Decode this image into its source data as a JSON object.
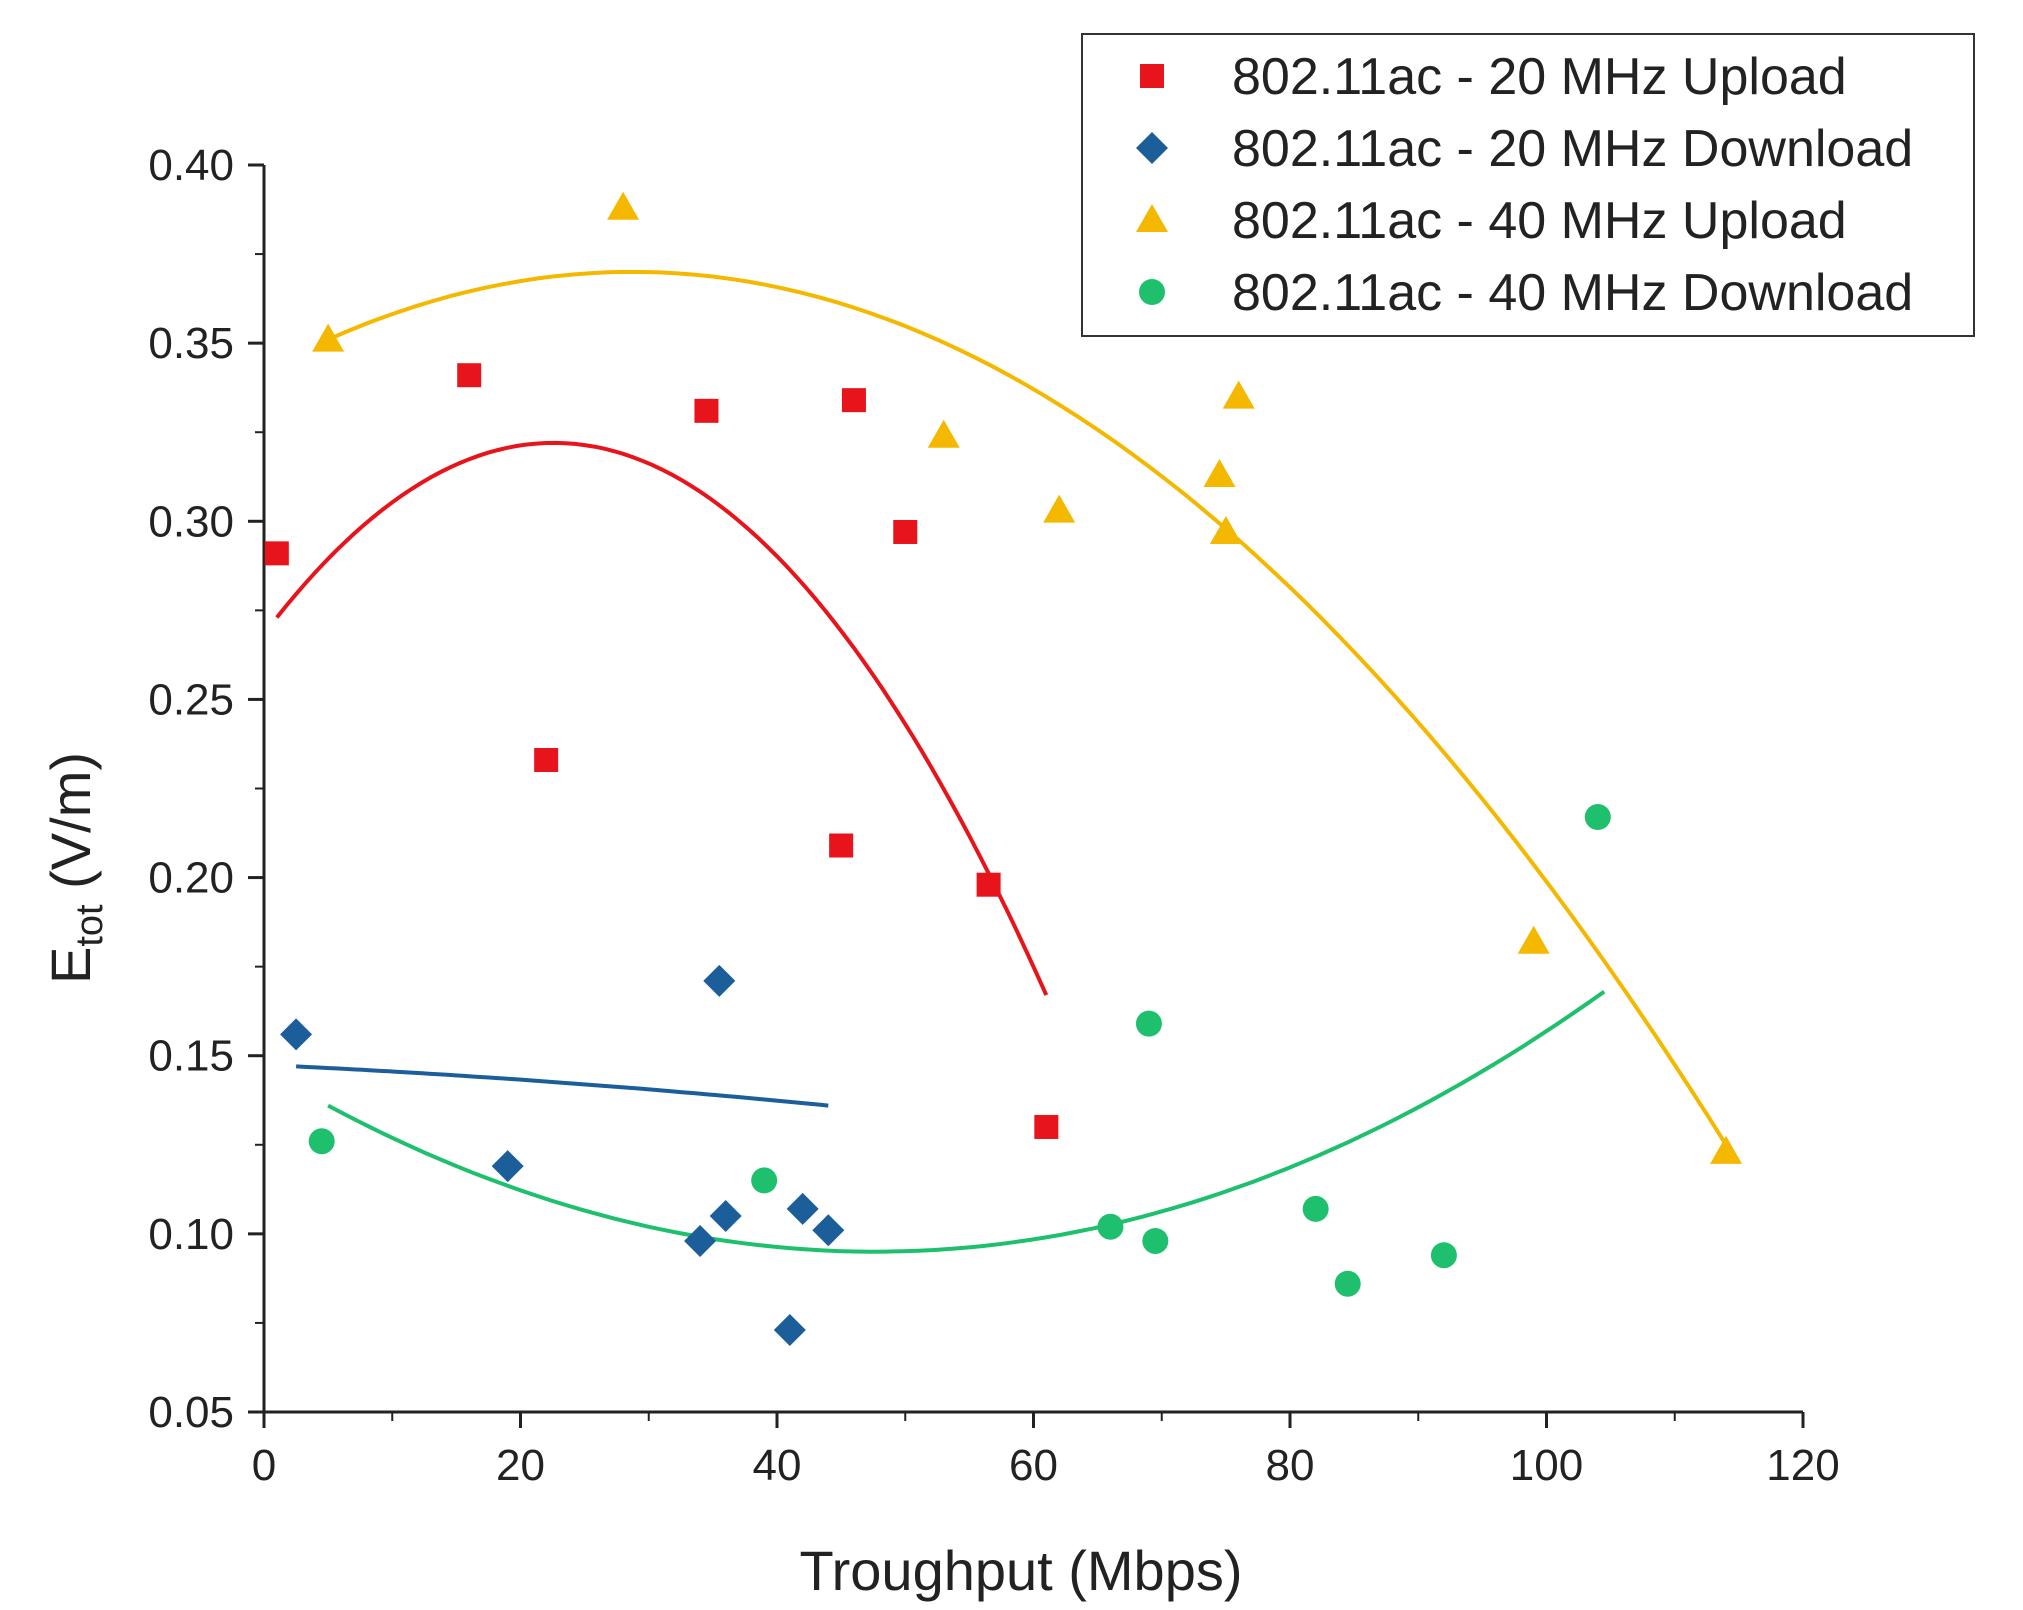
{
  "chart_data": {
    "type": "scatter",
    "title": "",
    "xlabel": "Troughput (Mbps)",
    "ylabel_main": "E",
    "ylabel_sub": "tot",
    "ylabel_unit": " (V/m)",
    "xlim": [
      0,
      120
    ],
    "ylim": [
      0.05,
      0.4
    ],
    "xticks": [
      0,
      20,
      40,
      60,
      80,
      100,
      120
    ],
    "xtick_labels": [
      "0",
      "20",
      "40",
      "60",
      "80",
      "100",
      "120"
    ],
    "yticks": [
      0.05,
      0.1,
      0.15,
      0.2,
      0.25,
      0.3,
      0.35,
      0.4
    ],
    "ytick_labels": [
      "0.05",
      "0.10",
      "0.15",
      "0.20",
      "0.25",
      "0.30",
      "0.35",
      "0.40"
    ],
    "grid": false,
    "legend_position": "top-right",
    "series": [
      {
        "name": "802.11ac - 20 MHz Upload",
        "marker": "square",
        "color": "#e8141b",
        "points": [
          [
            1,
            0.291
          ],
          [
            16,
            0.341
          ],
          [
            22,
            0.233
          ],
          [
            34.5,
            0.331
          ],
          [
            45,
            0.209
          ],
          [
            46,
            0.334
          ],
          [
            50,
            0.297
          ],
          [
            56.5,
            0.198
          ],
          [
            61,
            0.13
          ]
        ],
        "fit": {
          "type": "quadratic",
          "x": [
            1,
            22.5,
            61
          ],
          "y": [
            0.273,
            0.322,
            0.167
          ]
        }
      },
      {
        "name": "802.11ac - 20 MHz Download",
        "marker": "diamond",
        "color": "#1b5e9a",
        "points": [
          [
            2.5,
            0.156
          ],
          [
            19,
            0.119
          ],
          [
            34,
            0.098
          ],
          [
            35.5,
            0.171
          ],
          [
            36,
            0.105
          ],
          [
            41,
            0.073
          ],
          [
            42,
            0.107
          ],
          [
            44,
            0.101
          ]
        ],
        "fit": {
          "type": "quadratic",
          "x": [
            2.5,
            23,
            44
          ],
          "y": [
            0.147,
            0.1425,
            0.136
          ]
        }
      },
      {
        "name": "802.11ac - 40 MHz Upload",
        "marker": "triangle",
        "color": "#f5b800",
        "points": [
          [
            5,
            0.351
          ],
          [
            28,
            0.388
          ],
          [
            53,
            0.324
          ],
          [
            62,
            0.303
          ],
          [
            74.5,
            0.313
          ],
          [
            75,
            0.297
          ],
          [
            76,
            0.335
          ],
          [
            99,
            0.182
          ],
          [
            114,
            0.123
          ]
        ],
        "fit": {
          "type": "quadratic",
          "x": [
            5,
            28.5,
            114
          ],
          "y": [
            0.351,
            0.37,
            0.125
          ]
        }
      },
      {
        "name": "802.11ac - 40 MHz Download",
        "marker": "circle",
        "color": "#1ec06e",
        "points": [
          [
            4.5,
            0.126
          ],
          [
            39,
            0.115
          ],
          [
            66,
            0.102
          ],
          [
            69,
            0.159
          ],
          [
            69.5,
            0.098
          ],
          [
            82,
            0.107
          ],
          [
            84.5,
            0.086
          ],
          [
            92,
            0.094
          ],
          [
            104,
            0.217
          ]
        ],
        "fit": {
          "type": "quadratic",
          "x": [
            5,
            47,
            104.5
          ],
          "y": [
            0.136,
            0.095,
            0.168
          ]
        }
      }
    ]
  }
}
